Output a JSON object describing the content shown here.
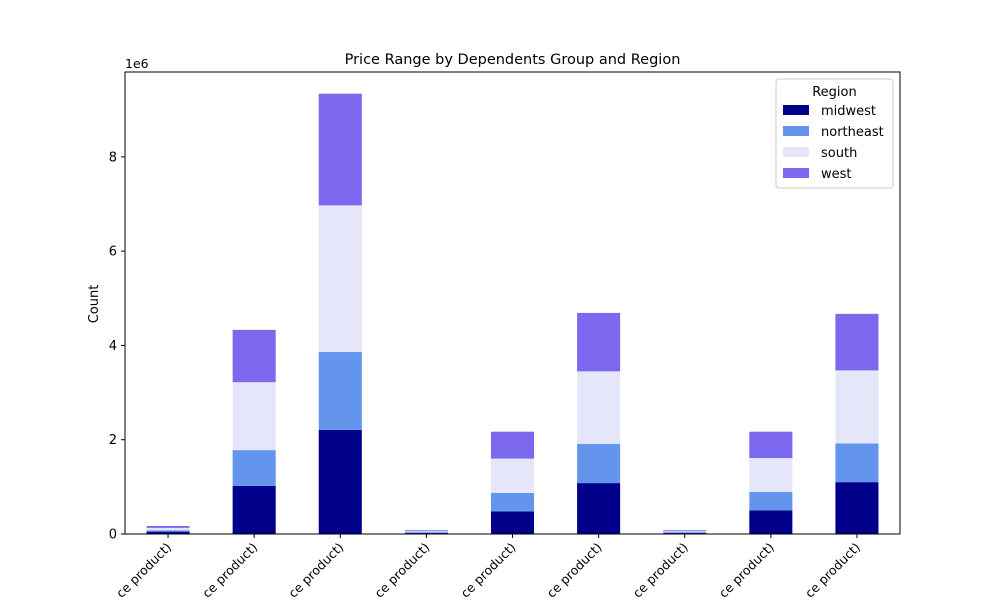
{
  "chart_data": {
    "type": "bar",
    "stacked": true,
    "title": "Price Range by Dependents Group and Region",
    "xlabel": "",
    "ylabel": "Count",
    "offset_label": "1e6",
    "ylim": [
      0,
      9800000
    ],
    "yticks": [
      0,
      2000000,
      4000000,
      6000000,
      8000000
    ],
    "ytick_labels": [
      "0",
      "2",
      "4",
      "6",
      "8"
    ],
    "categories": [
      "ce product)",
      "ce product)",
      "ce product)",
      "ce product)",
      "ce product)",
      "ce product)",
      "ce product)",
      "ce product)",
      "ce product)"
    ],
    "series": [
      {
        "name": "midwest",
        "color": "#00008b",
        "values": [
          50000,
          1020000,
          2210000,
          20000,
          480000,
          1080000,
          20000,
          500000,
          1100000
        ]
      },
      {
        "name": "northeast",
        "color": "#6495ed",
        "values": [
          30000,
          760000,
          1650000,
          20000,
          390000,
          830000,
          20000,
          390000,
          820000
        ]
      },
      {
        "name": "south",
        "color": "#e6e6fa",
        "values": [
          50000,
          1440000,
          3110000,
          20000,
          730000,
          1540000,
          20000,
          720000,
          1550000
        ]
      },
      {
        "name": "west",
        "color": "#7b68ee",
        "values": [
          40000,
          1110000,
          2370000,
          20000,
          570000,
          1240000,
          20000,
          560000,
          1200000
        ]
      }
    ],
    "legend": {
      "title": "Region",
      "position": "upper right"
    },
    "grid": false
  }
}
